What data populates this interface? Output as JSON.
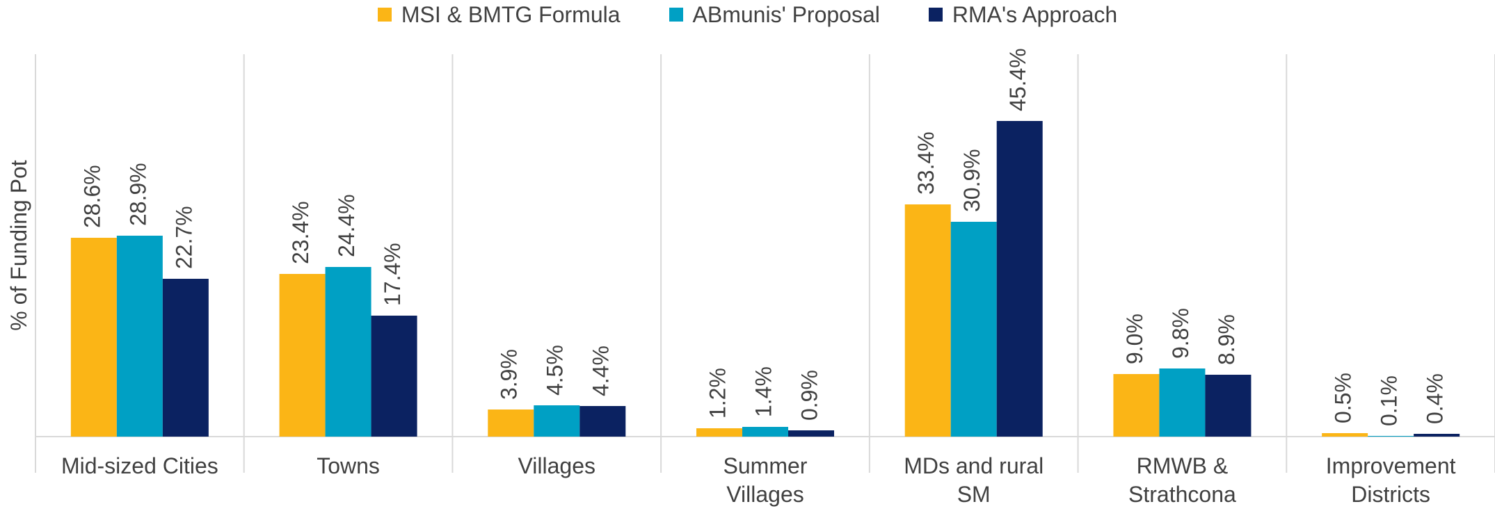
{
  "chart_data": {
    "type": "bar",
    "y_label": "% of Funding Pot",
    "categories": [
      "Mid-sized Cities",
      "Towns",
      "Villages",
      "Summer Villages",
      "MDs and rural SM",
      "RMWB & Strathcona",
      "Improvement Districts"
    ],
    "series": [
      {
        "name": "MSI & BMTG Formula",
        "color": "#fbb516",
        "values": [
          28.6,
          23.4,
          3.9,
          1.2,
          33.4,
          9.0,
          0.5
        ],
        "value_labels": [
          "28.6%",
          "23.4%",
          "3.9%",
          "1.2%",
          "33.4%",
          "9.0%",
          "0.5%"
        ]
      },
      {
        "name": "ABmunis' Proposal",
        "color": "#00a0c4",
        "values": [
          28.9,
          24.4,
          4.5,
          1.4,
          30.9,
          9.8,
          0.1
        ],
        "value_labels": [
          "28.9%",
          "24.4%",
          "4.5%",
          "1.4%",
          "30.9%",
          "9.8%",
          "0.1%"
        ]
      },
      {
        "name": "RMA's Approach",
        "color": "#0b2261",
        "values": [
          22.7,
          17.4,
          4.4,
          0.9,
          45.4,
          8.9,
          0.4
        ],
        "value_labels": [
          "22.7%",
          "17.4%",
          "4.4%",
          "0.9%",
          "45.4%",
          "8.9%",
          "0.4%"
        ]
      }
    ],
    "ylim": [
      0,
      55
    ],
    "legend": "top"
  }
}
